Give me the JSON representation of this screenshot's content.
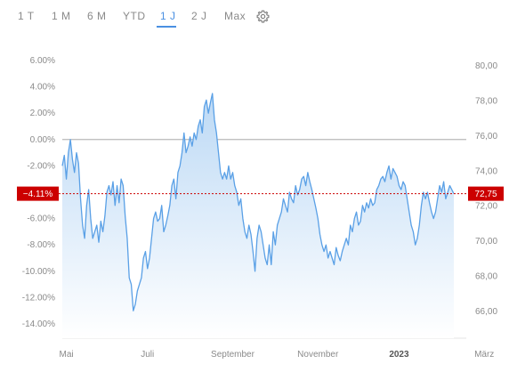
{
  "period_tabs": [
    {
      "label": "1 T",
      "active": false
    },
    {
      "label": "1 M",
      "active": false
    },
    {
      "label": "6 M",
      "active": false
    },
    {
      "label": "YTD",
      "active": false
    },
    {
      "label": "1 J",
      "active": true
    },
    {
      "label": "2 J",
      "active": false
    },
    {
      "label": "Max",
      "active": false
    }
  ],
  "settings_icon": "gear-icon",
  "colors": {
    "line": "#5aa0e6",
    "fill_top": "#bcd9f5",
    "fill_bottom": "#ffffff",
    "reference_line": "#cc0000",
    "badge": "#cc0000",
    "zero_line": "#9a9a9a",
    "tab_active": "#4a90e2"
  },
  "chart_data": {
    "type": "area",
    "left_axis": {
      "ticks": [
        "6.00%",
        "4.00%",
        "2.00%",
        "0.00%",
        "-2.00%",
        "-4.00%",
        "-6.00%",
        "-8.00%",
        "-10.00%",
        "-12.00%",
        "-14.00%"
      ],
      "range": [
        -14.0,
        6.0
      ],
      "unit": "%"
    },
    "right_axis": {
      "ticks": [
        "80,00",
        "78,00",
        "76,00",
        "74,00",
        "72,00",
        "70,00",
        "68,00",
        "66,00"
      ],
      "range": [
        66.0,
        80.0
      ]
    },
    "x_labels": [
      {
        "text": "Mai",
        "index": 2,
        "bold": false
      },
      {
        "text": "Juli",
        "index": 42,
        "bold": false
      },
      {
        "text": "September",
        "index": 84,
        "bold": false
      },
      {
        "text": "November",
        "index": 126,
        "bold": false
      },
      {
        "text": "2023",
        "index": 166,
        "bold": true
      },
      {
        "text": "März",
        "index": 208,
        "bold": false
      }
    ],
    "current": {
      "change_label": "-4.11%",
      "change": -4.11,
      "price_label": "72,75"
    },
    "series": [
      {
        "values": [
          -2.0,
          -1.2,
          -3.0,
          -1.0,
          0.0,
          -1.5,
          -2.5,
          -1.0,
          -1.8,
          -4.5,
          -6.5,
          -7.5,
          -5.0,
          -3.8,
          -6.0,
          -7.5,
          -7.0,
          -6.5,
          -7.8,
          -6.2,
          -7.0,
          -5.8,
          -4.0,
          -3.5,
          -4.2,
          -3.2,
          -5.0,
          -3.5,
          -4.8,
          -3.0,
          -3.5,
          -5.8,
          -7.5,
          -10.5,
          -11.0,
          -13.0,
          -12.5,
          -11.5,
          -11.0,
          -10.5,
          -9.0,
          -8.5,
          -9.8,
          -9.0,
          -7.5,
          -6.0,
          -5.5,
          -6.2,
          -6.0,
          -5.0,
          -7.0,
          -6.5,
          -5.8,
          -5.0,
          -3.5,
          -3.0,
          -4.5,
          -2.5,
          -2.0,
          -1.0,
          0.5,
          -1.0,
          -0.5,
          0.2,
          -0.5,
          0.5,
          0.0,
          1.0,
          1.5,
          0.5,
          2.5,
          3.0,
          2.0,
          2.8,
          3.5,
          1.5,
          0.5,
          -1.0,
          -2.5,
          -3.0,
          -2.5,
          -3.0,
          -2.0,
          -3.0,
          -2.5,
          -3.5,
          -4.0,
          -5.0,
          -4.5,
          -6.0,
          -7.0,
          -7.5,
          -6.5,
          -7.2,
          -8.5,
          -10.0,
          -7.5,
          -6.5,
          -7.0,
          -8.0,
          -9.0,
          -9.5,
          -8.0,
          -9.5,
          -7.0,
          -8.0,
          -6.5,
          -6.0,
          -5.5,
          -4.5,
          -5.0,
          -5.5,
          -4.0,
          -4.5,
          -4.8,
          -3.5,
          -4.2,
          -3.8,
          -3.0,
          -2.8,
          -3.5,
          -2.5,
          -3.2,
          -3.8,
          -4.5,
          -5.2,
          -6.0,
          -7.2,
          -8.0,
          -8.5,
          -8.0,
          -9.0,
          -8.5,
          -9.0,
          -9.5,
          -8.2,
          -8.8,
          -9.2,
          -8.5,
          -8.0,
          -7.5,
          -8.0,
          -6.5,
          -7.0,
          -6.0,
          -5.5,
          -6.5,
          -6.2,
          -5.0,
          -5.5,
          -4.8,
          -5.2,
          -4.5,
          -5.0,
          -4.8,
          -3.8,
          -3.5,
          -3.0,
          -2.8,
          -3.2,
          -2.5,
          -2.0,
          -3.0,
          -2.2,
          -2.5,
          -2.8,
          -3.5,
          -3.8,
          -3.2,
          -3.5,
          -4.5,
          -5.5,
          -6.5,
          -7.0,
          -8.0,
          -7.5,
          -6.5,
          -5.0,
          -4.0,
          -4.5,
          -4.0,
          -4.8,
          -5.5,
          -6.0,
          -5.5,
          -4.5,
          -3.5,
          -4.0,
          -3.2,
          -4.5,
          -4.0,
          -3.5,
          -3.8,
          -4.11
        ]
      }
    ]
  }
}
